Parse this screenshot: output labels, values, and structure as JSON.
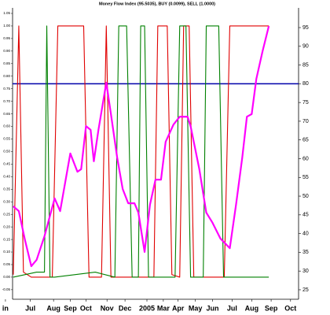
{
  "chart_data": {
    "type": "line",
    "title": "Money Flow Index (95.5035), BUY (0.0099), SELL (1.0000)",
    "xlim": [
      0.4,
      16.45
    ],
    "xticks": [
      {
        "value": 0,
        "label": "in"
      },
      {
        "value": 1.4,
        "label": "Jul"
      },
      {
        "value": 2.7,
        "label": "Aug"
      },
      {
        "value": 3.64,
        "label": "Sep"
      },
      {
        "value": 4.52,
        "label": "Oct"
      },
      {
        "value": 5.7,
        "label": "Nov"
      },
      {
        "value": 6.71,
        "label": "Dec"
      },
      {
        "value": 7.94,
        "label": "2005"
      },
      {
        "value": 8.86,
        "label": "Mar"
      },
      {
        "value": 9.69,
        "label": "Apr"
      },
      {
        "value": 10.66,
        "label": "May"
      },
      {
        "value": 11.62,
        "label": "Jun"
      },
      {
        "value": 12.72,
        "label": "Jul"
      },
      {
        "value": 13.82,
        "label": "Aug"
      },
      {
        "value": 14.91,
        "label": "Sep"
      },
      {
        "value": 16,
        "label": "Oct"
      }
    ],
    "ylim": [
      -0.088,
      1.072
    ],
    "yticks": [
      -0.05,
      {
        "value": 0,
        "label": "0.00"
      },
      0.05,
      {
        "value": 0.1,
        "label": "0.10"
      },
      0.15,
      {
        "value": 0.2,
        "label": "0.20"
      },
      0.25,
      {
        "value": 0.3,
        "label": "0.30"
      },
      0.35,
      {
        "value": 0.4,
        "label": "0.40"
      },
      0.45,
      {
        "value": 0.5,
        "label": "0.50"
      },
      0.55,
      {
        "value": 0.6,
        "label": "0.60"
      },
      0.65,
      {
        "value": 0.7,
        "label": "0.70"
      },
      0.75,
      {
        "value": 0.8,
        "label": "0.80"
      },
      0.85,
      {
        "value": 0.9,
        "label": "0.90"
      },
      0.95,
      {
        "value": 1,
        "label": "1.00"
      },
      1.05
    ],
    "y2lim": [
      22.47,
      100.26
    ],
    "y2ticks": [
      25,
      30,
      35,
      40,
      45,
      50,
      55,
      60,
      65,
      70,
      75,
      80,
      85,
      90,
      95
    ],
    "reference_line": {
      "value": 80,
      "axis": "y2",
      "color": "#0000aa"
    },
    "series": [
      {
        "name": "SELL",
        "color": "#e00000",
        "x": [
          0.44,
          0.75,
          1.01,
          1.45,
          2.63,
          2.94,
          4.39,
          4.69,
          5.39,
          5.66,
          5.92,
          8.33,
          8.55,
          9.08,
          9.34,
          9.78,
          10.0,
          10.31,
          10.57,
          12.28,
          12.59,
          14.78
        ],
        "values": [
          0.01,
          1.0,
          0.02,
          0.0,
          0.0,
          1.0,
          1.0,
          0.0,
          0.0,
          1.0,
          0.0,
          0.0,
          1.0,
          1.0,
          0.01,
          0.0,
          1.0,
          1.0,
          0.0,
          0.0,
          1.0,
          1.0
        ]
      },
      {
        "name": "BUY",
        "color": "#008000",
        "x": [
          0.44,
          1.75,
          2.19,
          2.32,
          2.5,
          2.76,
          5.04,
          6.14,
          6.36,
          6.8,
          7.11,
          7.46,
          7.59,
          7.81,
          8.03,
          9.52,
          9.78,
          10.13,
          10.39,
          11.1,
          11.27,
          11.97,
          12.24,
          14.78
        ],
        "values": [
          0.0,
          0.02,
          0.02,
          1.0,
          0.0,
          0.0,
          0.02,
          0.0,
          1.0,
          1.0,
          0.0,
          0.0,
          1.0,
          1.0,
          0.0,
          0.0,
          1.0,
          1.0,
          0.0,
          0.0,
          1.0,
          1.0,
          0.0,
          0.0
        ]
      },
      {
        "name": "Money Flow Index",
        "color": "#ff00ff",
        "axis": "y2",
        "x": [
          0.44,
          0.75,
          1.1,
          1.45,
          1.75,
          2.19,
          2.76,
          3.07,
          3.64,
          4.04,
          4.25,
          4.52,
          4.78,
          4.96,
          5.22,
          5.66,
          5.92,
          6.27,
          6.58,
          6.89,
          7.24,
          7.46,
          7.81,
          8.11,
          8.42,
          8.73,
          8.99,
          9.43,
          9.78,
          10.22,
          10.39,
          10.88,
          11.27,
          11.62,
          12.06,
          12.59,
          12.94,
          13.29,
          13.55,
          13.82,
          14.08,
          14.43,
          14.78
        ],
        "values": [
          47.3,
          46,
          38.2,
          31.3,
          33,
          39.3,
          49.4,
          46,
          61.4,
          56.5,
          57.2,
          68.7,
          67.7,
          59.3,
          67.7,
          80.3,
          71.9,
          60.3,
          51.9,
          48.1,
          48.1,
          45.6,
          35.1,
          47.7,
          54.4,
          54.4,
          64.5,
          69.1,
          71.2,
          71.2,
          68.7,
          57.2,
          45.6,
          42.9,
          38.7,
          36.1,
          47.7,
          60.3,
          71.2,
          71.9,
          81.3,
          88.7,
          95.4
        ]
      }
    ]
  }
}
